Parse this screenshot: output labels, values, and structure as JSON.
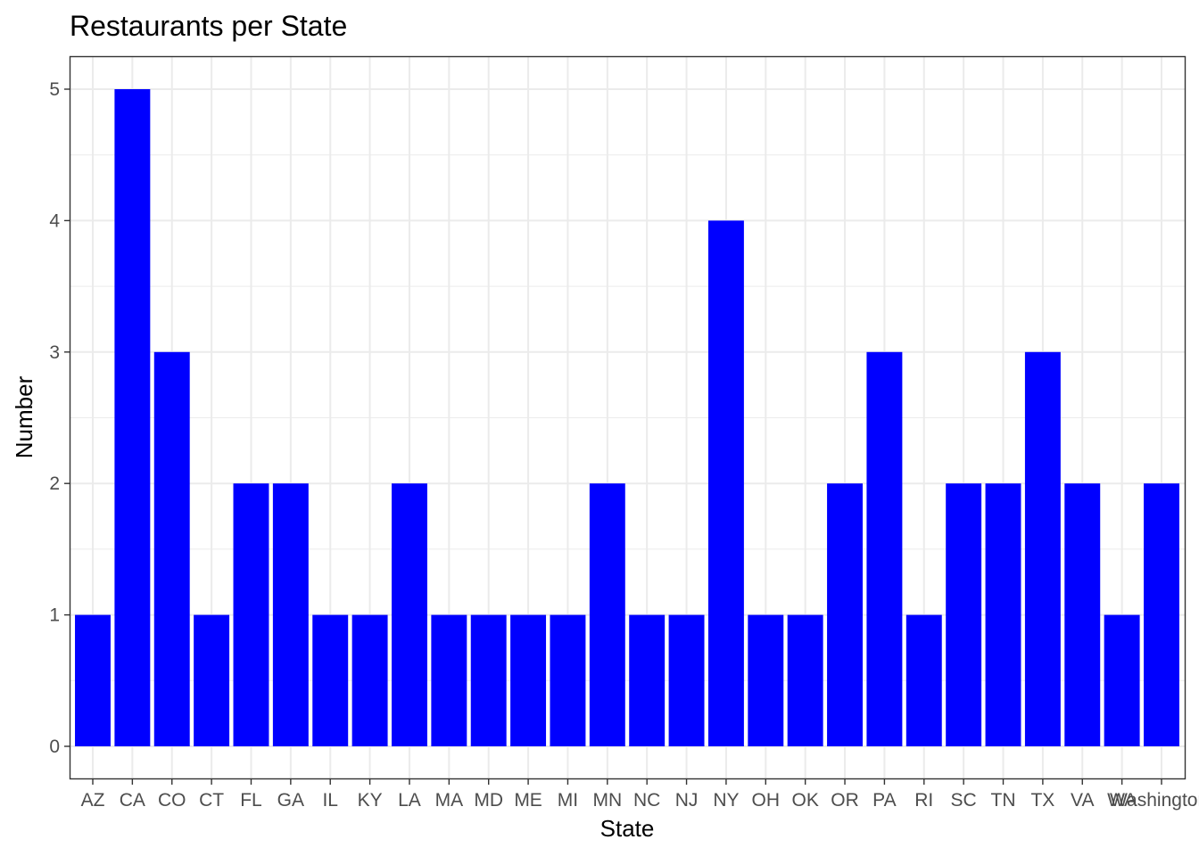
{
  "chart_data": {
    "type": "bar",
    "title": "Restaurants per State",
    "xlabel": "State",
    "ylabel": "Number",
    "categories": [
      "AZ",
      "CA",
      "CO",
      "CT",
      "FL",
      "GA",
      "IL",
      "KY",
      "LA",
      "MA",
      "MD",
      "ME",
      "MI",
      "MN",
      "NC",
      "NJ",
      "NY",
      "OH",
      "OK",
      "OR",
      "PA",
      "RI",
      "SC",
      "TN",
      "TX",
      "VA",
      "WA",
      "Washington,"
    ],
    "values": [
      1,
      5,
      3,
      1,
      2,
      2,
      1,
      1,
      2,
      1,
      1,
      1,
      1,
      2,
      1,
      1,
      4,
      1,
      1,
      2,
      3,
      1,
      2,
      2,
      3,
      2,
      1,
      2
    ],
    "ylim": [
      0,
      5.25
    ],
    "yticks": [
      0,
      1,
      2,
      3,
      4,
      5
    ],
    "grid": true,
    "bar_color": "#0000ff",
    "grid_color": "#ebebeb",
    "tick_label_color": "#4d4d4d"
  }
}
